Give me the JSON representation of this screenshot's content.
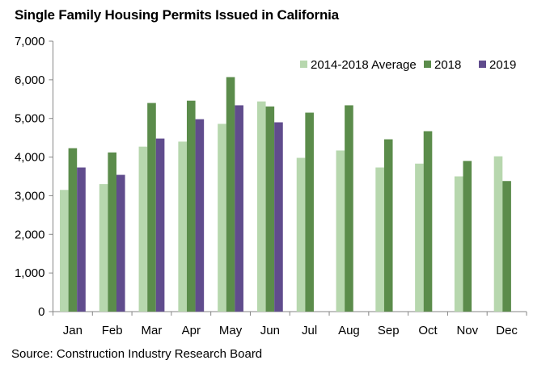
{
  "chart_data": {
    "type": "bar",
    "title": "Single Family Housing Permits Issued in California",
    "xlabel": "",
    "ylabel": "",
    "ylim": [
      0,
      7000
    ],
    "yticks": [
      0,
      1000,
      2000,
      3000,
      4000,
      5000,
      6000,
      7000
    ],
    "ytick_labels": [
      "0",
      "1,000",
      "2,000",
      "3,000",
      "4,000",
      "5,000",
      "6,000",
      "7,000"
    ],
    "grid": false,
    "legend_position": "top-right",
    "categories": [
      "Jan",
      "Feb",
      "Mar",
      "Apr",
      "May",
      "Jun",
      "Jul",
      "Aug",
      "Sep",
      "Oct",
      "Nov",
      "Dec"
    ],
    "series": [
      {
        "name": "2014-2018 Average",
        "color": "#B7D7AE",
        "values": [
          3150,
          3300,
          4270,
          4400,
          4860,
          5440,
          3980,
          4170,
          3730,
          3830,
          3500,
          4020
        ]
      },
      {
        "name": "2018",
        "color": "#5B8C4B",
        "values": [
          4230,
          4120,
          5400,
          5460,
          6070,
          5310,
          5150,
          5340,
          4460,
          4670,
          3900,
          3380
        ]
      },
      {
        "name": "2019",
        "color": "#604C8D",
        "values": [
          3730,
          3540,
          4480,
          4980,
          5340,
          4900,
          null,
          null,
          null,
          null,
          null,
          null
        ]
      }
    ],
    "source": "Source: Construction Industry Research Board"
  },
  "axis_color": "#868686"
}
